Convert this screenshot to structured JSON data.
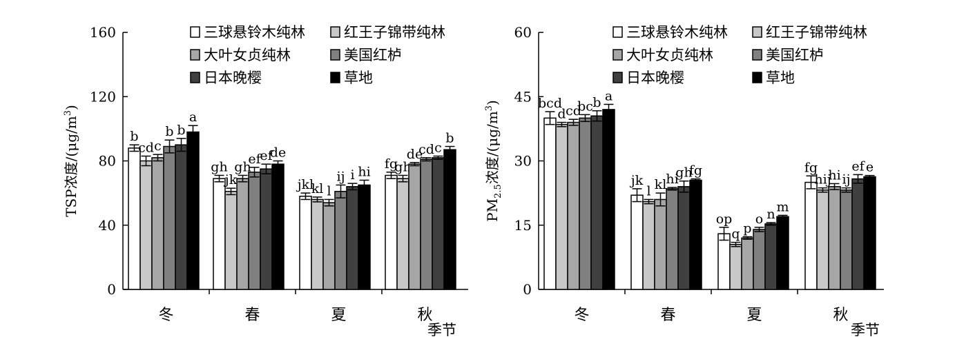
{
  "series_colors": [
    "#ffffff",
    "#c8c8c8",
    "#a6a6a6",
    "#808080",
    "#404040",
    "#000000"
  ],
  "chart_data": [
    {
      "type": "bar",
      "ylabel_main": "TSP浓度/(μg/m",
      "ylabel_sup": "3",
      "ylabel_end": ")",
      "xlabel": "季节",
      "ylim": [
        0,
        160
      ],
      "yticks": [
        "0",
        "40",
        "80",
        "120",
        "160"
      ],
      "categories": [
        "冬",
        "春",
        "夏",
        "秋"
      ],
      "series": [
        {
          "name": "三球悬铃木纯林",
          "values": [
            88,
            69,
            58,
            71
          ],
          "errors": [
            2,
            2,
            2,
            2
          ],
          "letters": [
            "b",
            "gh",
            "jkl",
            "fg"
          ]
        },
        {
          "name": "红王子锦带纯林",
          "values": [
            80,
            61,
            56,
            69
          ],
          "errors": [
            3,
            2,
            1.5,
            2
          ],
          "letters": [
            "cd",
            "jk",
            "kl",
            "gh"
          ]
        },
        {
          "name": "大叶女贞纯林",
          "values": [
            82,
            69,
            54,
            78
          ],
          "errors": [
            2,
            2,
            2,
            1
          ],
          "letters": [
            "c",
            "gh",
            "l",
            "de"
          ]
        },
        {
          "name": "美国红栌",
          "values": [
            89,
            73,
            61,
            81
          ],
          "errors": [
            4,
            3,
            4,
            1
          ],
          "letters": [
            "b",
            "ef",
            "ij",
            "cd"
          ]
        },
        {
          "name": "日本晚樱",
          "values": [
            90,
            75,
            64,
            82
          ],
          "errors": [
            4,
            3,
            2,
            1
          ],
          "letters": [
            "b",
            "ef",
            "i",
            "c"
          ]
        },
        {
          "name": "草地",
          "values": [
            98,
            78,
            65,
            87
          ],
          "errors": [
            4,
            2,
            3,
            2
          ],
          "letters": [
            "a",
            "de",
            "hi",
            "b"
          ]
        }
      ]
    },
    {
      "type": "bar",
      "ylabel_main": "PM",
      "ylabel_sub": "2.5",
      "ylabel_mid": "浓度/(μg/m",
      "ylabel_sup": "3",
      "ylabel_end": ")",
      "xlabel": "季节",
      "ylim": [
        0,
        60
      ],
      "yticks": [
        "0",
        "15",
        "30",
        "45",
        "60"
      ],
      "categories": [
        "冬",
        "春",
        "夏",
        "秋"
      ],
      "series": [
        {
          "name": "三球悬铃木纯林",
          "values": [
            40,
            22,
            13,
            25
          ],
          "errors": [
            1.5,
            1.5,
            1.5,
            1.5
          ],
          "letters": [
            "bcd",
            "jk",
            "op",
            "fg"
          ]
        },
        {
          "name": "红王子锦带纯林",
          "values": [
            38.5,
            20.5,
            10.5,
            23.2
          ],
          "errors": [
            0.5,
            0.5,
            0.5,
            0.5
          ],
          "letters": [
            "d",
            "l",
            "q",
            "hij"
          ]
        },
        {
          "name": "大叶女贞纯林",
          "values": [
            39,
            21,
            12,
            24
          ],
          "errors": [
            0.7,
            1.5,
            0.3,
            0.7
          ],
          "letters": [
            "cd",
            "kl",
            "p",
            "hi"
          ]
        },
        {
          "name": "美国红栌",
          "values": [
            40,
            23.5,
            14,
            23.2
          ],
          "errors": [
            0.8,
            0.3,
            0.5,
            0.5
          ],
          "letters": [
            "bc",
            "hi",
            "o",
            "ij"
          ]
        },
        {
          "name": "日本晚樱",
          "values": [
            40.5,
            24,
            15.3,
            25.8
          ],
          "errors": [
            1.2,
            1.3,
            0.3,
            1.0
          ],
          "letters": [
            "b",
            "gh",
            "n",
            "ef"
          ]
        },
        {
          "name": "草地",
          "values": [
            42,
            25.5,
            17,
            26.3
          ],
          "errors": [
            1.2,
            0.3,
            0.3,
            0.3
          ],
          "letters": [
            "a",
            "fg",
            "m",
            "e"
          ]
        }
      ]
    }
  ]
}
